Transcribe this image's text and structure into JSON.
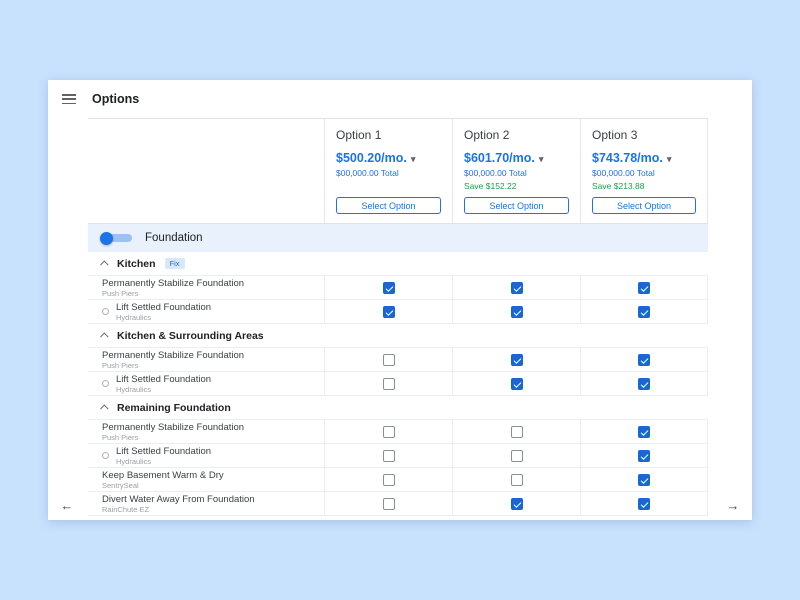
{
  "header": {
    "title": "Options"
  },
  "options": [
    {
      "label": "Option 1",
      "price": "$500.20/mo.",
      "total": "$00,000.00 Total",
      "save": "",
      "button": "Select Option"
    },
    {
      "label": "Option 2",
      "price": "$601.70/mo.",
      "total": "$00,000.00 Total",
      "save": "Save $152.22",
      "button": "Select Option"
    },
    {
      "label": "Option 3",
      "price": "$743.78/mo.",
      "total": "$00,000.00 Total",
      "save": "Save $213.88",
      "button": "Select Option"
    }
  ],
  "category": {
    "label": "Foundation",
    "toggle_on": true
  },
  "sections": [
    {
      "label": "Kitchen",
      "badge": "Fix",
      "rows": [
        {
          "title": "Permanently Stabilize Foundation",
          "subtitle": "Push Piers",
          "checks": [
            true,
            true,
            true
          ]
        },
        {
          "title": "Lift Settled Foundation",
          "subtitle": "Hydraulics",
          "checks": [
            true,
            true,
            true
          ]
        }
      ]
    },
    {
      "label": "Kitchen & Surrounding Areas",
      "badge": "",
      "rows": [
        {
          "title": "Permanently Stabilize Foundation",
          "subtitle": "Push Piers",
          "checks": [
            false,
            true,
            true
          ]
        },
        {
          "title": "Lift Settled Foundation",
          "subtitle": "Hydraulics",
          "checks": [
            false,
            true,
            true
          ]
        }
      ]
    },
    {
      "label": "Remaining Foundation",
      "badge": "",
      "rows": [
        {
          "title": "Permanently Stabilize Foundation",
          "subtitle": "Push Piers",
          "checks": [
            false,
            false,
            true
          ]
        },
        {
          "title": "Lift Settled Foundation",
          "subtitle": "Hydraulics",
          "checks": [
            false,
            false,
            true
          ]
        },
        {
          "title": "Keep Basement Warm & Dry",
          "subtitle": "SentrySeal",
          "checks": [
            false,
            false,
            true
          ]
        },
        {
          "title": "Divert Water Away From Foundation",
          "subtitle": "RainChute EZ",
          "checks": [
            false,
            true,
            true
          ]
        }
      ]
    }
  ],
  "colors": {
    "accent": "#1a73e8",
    "save_green": "#1e9e4a",
    "background": "#c8e1fd"
  }
}
